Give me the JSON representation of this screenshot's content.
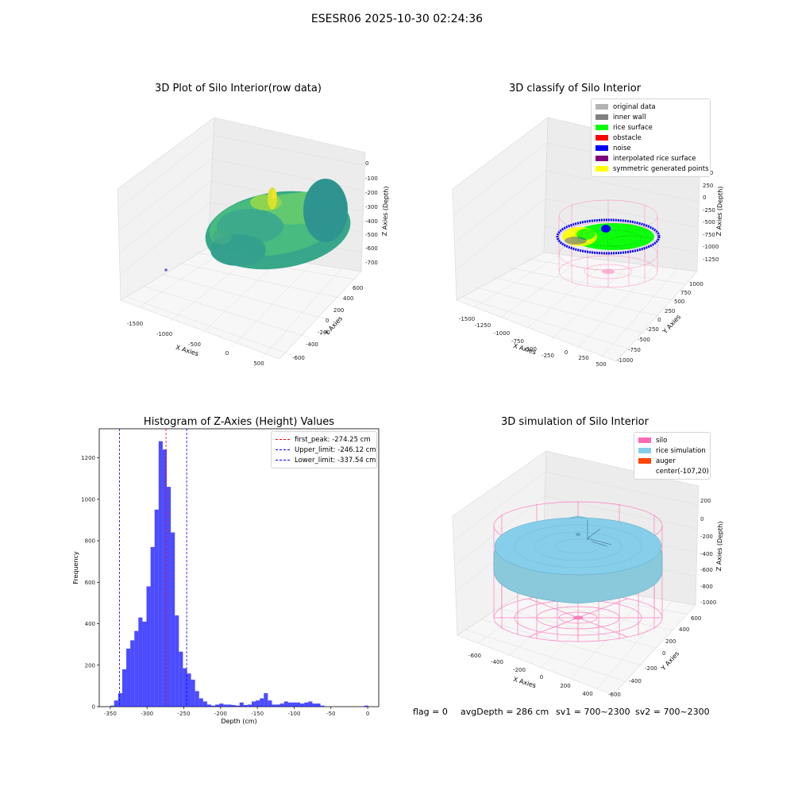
{
  "figure": {
    "suptitle": "ESESR06 2025-10-30 02:24:36",
    "status": {
      "flag": "flag = 0",
      "avg_depth": "avgDepth = 286 cm",
      "sv1": "sv1 = 700~2300",
      "sv2": "sv2 = 700~2300"
    }
  },
  "panels": {
    "raw": {
      "title": "3D Plot of Silo Interior(row data)",
      "xlabel": "X Axies",
      "ylabel": "Y Axies",
      "zlabel": "Z Axies (Depth)",
      "xticks": [
        "-1500",
        "-1000",
        "-500",
        "0",
        "500"
      ],
      "yticks": [
        "-600",
        "-400",
        "-200",
        "0",
        "200",
        "400",
        "600"
      ],
      "zticks": [
        "0",
        "-100",
        "-200",
        "-300",
        "-400",
        "-500",
        "-600",
        "-700"
      ],
      "colormap": "viridis"
    },
    "classify": {
      "title": "3D classify of Silo Interior",
      "xlabel": "X Axies",
      "ylabel": "Y Axies",
      "zlabel": "Z Axies (Depth)",
      "xticks": [
        "-1500",
        "-1250",
        "-1000",
        "-750",
        "-500",
        "-250",
        "0",
        "250",
        "500"
      ],
      "yticks": [
        "-1000",
        "-750",
        "-500",
        "-250",
        "0",
        "250",
        "500",
        "750",
        "1000"
      ],
      "zticks": [
        "500",
        "250",
        "0",
        "-250",
        "-500",
        "-750",
        "-1000",
        "-1250"
      ],
      "legend": [
        {
          "label": "original data",
          "color": "#b3b3b3"
        },
        {
          "label": "inner wall",
          "color": "#808080"
        },
        {
          "label": "rice surface",
          "color": "#00ff00"
        },
        {
          "label": "obstacle",
          "color": "#ff0000"
        },
        {
          "label": "noise",
          "color": "#0000ff"
        },
        {
          "label": "interpolated rice surface",
          "color": "#800080"
        },
        {
          "label": "symmetric generated points",
          "color": "#ffff00"
        }
      ]
    },
    "simulation": {
      "title": "3D simulation of Silo Interior",
      "xlabel": "X Axies",
      "ylabel": "Y Axies",
      "zlabel": "Z Axies (Depth)",
      "xticks": [
        "-600",
        "-400",
        "-200",
        "0",
        "200",
        "400"
      ],
      "yticks": [
        "-600",
        "-400",
        "-200",
        "0",
        "200",
        "400",
        "600"
      ],
      "zticks": [
        "200",
        "0",
        "-200",
        "-400",
        "-600",
        "-800",
        "-1000"
      ],
      "legend": [
        {
          "label": "silo",
          "color": "#ff69b4"
        },
        {
          "label": "rice simulation",
          "color": "#87ceeb"
        },
        {
          "label": "auger",
          "color": "#ff4500"
        },
        {
          "label": "center(-107,20)",
          "color": ""
        }
      ]
    }
  },
  "chart_data": {
    "type": "bar",
    "title": "Histogram of Z-Axies (Height) Values",
    "xlabel": "Depth (cm)",
    "ylabel": "Frequency",
    "xlim": [
      -365,
      15
    ],
    "ylim": [
      0,
      1340
    ],
    "xticks": [
      -350,
      -300,
      -250,
      -200,
      -150,
      -100,
      -50,
      0
    ],
    "yticks": [
      0,
      200,
      400,
      600,
      800,
      1000,
      1200
    ],
    "bar_color": "#0000ff",
    "bar_alpha": 0.7,
    "bin_width": 5.5,
    "bins": [
      [
        -347.5,
        5
      ],
      [
        -342,
        30
      ],
      [
        -336.5,
        65
      ],
      [
        -331,
        180
      ],
      [
        -325.5,
        280
      ],
      [
        -320,
        320
      ],
      [
        -314.5,
        365
      ],
      [
        -309,
        430
      ],
      [
        -303.5,
        410
      ],
      [
        -298,
        580
      ],
      [
        -292.5,
        770
      ],
      [
        -287,
        950
      ],
      [
        -281.5,
        1280
      ],
      [
        -276,
        1240
      ],
      [
        -270.5,
        1060
      ],
      [
        -265,
        840
      ],
      [
        -259.5,
        440
      ],
      [
        -254,
        265
      ],
      [
        -248.5,
        185
      ],
      [
        -243,
        160
      ],
      [
        -237.5,
        130
      ],
      [
        -232,
        75
      ],
      [
        -226.5,
        40
      ],
      [
        -221,
        25
      ],
      [
        -215.5,
        10
      ],
      [
        -210,
        5
      ],
      [
        -204.5,
        10
      ],
      [
        -199,
        15
      ],
      [
        -193.5,
        10
      ],
      [
        -188,
        10
      ],
      [
        -182.5,
        8
      ],
      [
        -177,
        5
      ],
      [
        -171.5,
        20
      ],
      [
        -166,
        8
      ],
      [
        -160.5,
        10
      ],
      [
        -155,
        25
      ],
      [
        -149.5,
        30
      ],
      [
        -144,
        40
      ],
      [
        -138.5,
        65
      ],
      [
        -133,
        30
      ],
      [
        -127.5,
        10
      ],
      [
        -122,
        10
      ],
      [
        -116.5,
        15
      ],
      [
        -111,
        25
      ],
      [
        -105.5,
        20
      ],
      [
        -100,
        20
      ],
      [
        -94.5,
        20
      ],
      [
        -89,
        15
      ],
      [
        -83.5,
        20
      ],
      [
        -78,
        25
      ],
      [
        -72.5,
        15
      ],
      [
        -67,
        15
      ],
      [
        -61.5,
        5
      ],
      [
        -2,
        5
      ]
    ],
    "lines": [
      {
        "label": "first_peak: -274.25 cm",
        "x": -274.25,
        "color": "#ff0000"
      },
      {
        "label": "Upper_limit: -246.12 cm",
        "x": -246.12,
        "color": "#0000ff"
      },
      {
        "label": "Lower_limit: -337.54 cm",
        "x": -337.54,
        "color": "#0000ff"
      }
    ],
    "legend_position": "upper right"
  }
}
